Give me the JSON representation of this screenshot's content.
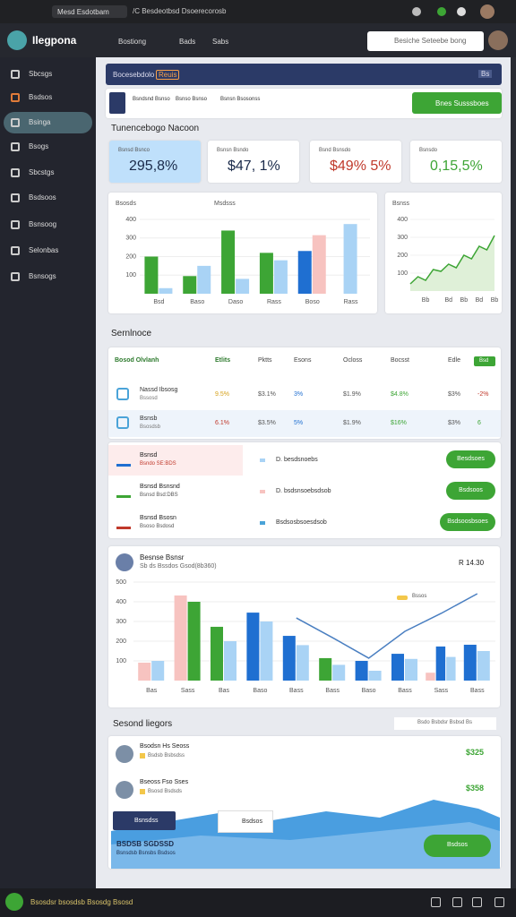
{
  "browser": {
    "tab": "Mesd Esdotbam",
    "url": "/C Besdeotbsd Dsoerecorosb"
  },
  "app": {
    "brand": "Ilegpona",
    "nav": [
      "Bostiong",
      "Bads",
      "Sabs"
    ],
    "search": "Besiche Seteebe bong"
  },
  "sidebar": [
    "Sbcsgs",
    "Bsdsos",
    "Bsinga",
    "Bsogs",
    "Sbcstgs",
    "Bsdsoos",
    "Bsnsoog",
    "Selonbas",
    "Bsnsogs"
  ],
  "banner": {
    "title": "Bocesebdolo",
    "tag": "Reuis",
    "badge": "Bs"
  },
  "toolbar": {
    "items": [
      "Bsndsnd Bsnso",
      "Bsnso Bsnso",
      "Bsnsn Bsosonss"
    ],
    "button": "Bnes Susssboes"
  },
  "kpi_section": "Tunencebogo Nacoon",
  "kpis": [
    {
      "label": "Bsnsd Bsnco",
      "value": "295,8%"
    },
    {
      "label": "Bsnsn Bsndo",
      "value": "$47, 1%"
    },
    {
      "label": "Bsnd Bsnsdo",
      "value": "$49% 5%"
    },
    {
      "label": "Bsnsdo",
      "value": "0,15,5%"
    }
  ],
  "chart1": {
    "title": "Bsosds",
    "subtitle": "Msdsss",
    "categories": [
      "Bsd",
      "Baso",
      "Daso",
      "Rass",
      "Boso",
      "Rass"
    ],
    "series": [
      {
        "color": "#3da535",
        "values": [
          200,
          95,
          340,
          220,
          null,
          null
        ]
      },
      {
        "color": "#a9d3f5",
        "values": [
          30,
          150,
          80,
          180,
          null,
          375
        ]
      },
      {
        "color": "#1f6fd1",
        "values": [
          null,
          null,
          null,
          null,
          230,
          null
        ]
      },
      {
        "color": "#f7c3c0",
        "values": [
          null,
          null,
          null,
          null,
          315,
          null
        ]
      }
    ],
    "ylim": [
      0,
      400
    ],
    "yticks": [
      100,
      200,
      300,
      400
    ]
  },
  "chart2": {
    "title": "Bsnss",
    "categories": [
      null,
      null,
      "Bb",
      null,
      null,
      "Bd",
      null,
      "Bb",
      null,
      "Bd",
      null,
      "Bb"
    ],
    "values": [
      40,
      80,
      60,
      120,
      110,
      150,
      130,
      200,
      180,
      250,
      230,
      310
    ],
    "ylim": [
      0,
      400
    ],
    "yticks": [
      100,
      200,
      300,
      400
    ],
    "color": "#3da535"
  },
  "table_section": "Sernlnoce",
  "table": {
    "header": [
      "Bosod Olvlanh",
      "Etlits",
      "Pktts",
      "Esons",
      "Ocloss",
      "Bocsst",
      "Edle"
    ],
    "button": "Bsd",
    "rows": [
      {
        "name": "Nassd Ibsosg",
        "sub": "Bssosd",
        "cells": [
          "9.5%",
          "$3.1%",
          "3%",
          "$1.9%",
          "$4.8%",
          "$3%",
          "-2%"
        ]
      },
      {
        "name": "Bsnsb",
        "sub": "Bsosdsb",
        "cells": [
          "6.1%",
          "$3.5%",
          "5%",
          "$1.9%",
          "$16%",
          "$3%",
          "6"
        ]
      }
    ]
  },
  "actions": [
    {
      "title": "Bsnsd",
      "sub": "Bsndo SE:BDS",
      "detail": "D. besdsnoebs",
      "button": "Besdsoes"
    },
    {
      "title": "Bsnsd Bsnsnd",
      "sub": "Bsnsd Bsd:DBS",
      "detail": "D. bsdsnsoebsdsob",
      "button": "Bsdsoos"
    },
    {
      "title": "Bsnsd Bsosn",
      "sub": "Bsoso Bsdosd",
      "detail": "Bsdsosbsoesdsob",
      "button": "Bsdsoosbsoes"
    }
  ],
  "chart3": {
    "title": "Besnse Bsnsr",
    "subtitle": "Sb ds Bssdos Gsod(8b360)",
    "meta": "R 14.30",
    "annotation": "Bssos",
    "categories": [
      "Bas",
      "Sass",
      "Bas",
      "Baso",
      "Bass",
      "Bass",
      "Baso",
      "Bass",
      "Sass",
      "Bass"
    ],
    "series": [
      {
        "color": "#f7c3c0",
        "values": [
          91,
          432,
          null,
          null,
          null,
          null,
          null,
          null,
          40,
          null
        ]
      },
      {
        "color": "#3da535",
        "values": [
          null,
          400,
          273,
          null,
          null,
          114,
          null,
          null,
          null,
          null
        ]
      },
      {
        "color": "#1f6fd1",
        "values": [
          null,
          null,
          null,
          345,
          227,
          null,
          100,
          136,
          173,
          182
        ]
      },
      {
        "color": "#a9d3f5",
        "values": [
          100,
          null,
          200,
          300,
          180,
          80,
          50,
          110,
          120,
          150
        ]
      }
    ],
    "line": {
      "color": "#4a7fc1",
      "values": [
        null,
        null,
        null,
        null,
        318,
        218,
        114,
        250,
        341,
        441
      ]
    },
    "ylim": [
      0,
      500
    ],
    "yticks": [
      100,
      200,
      300,
      400,
      500
    ]
  },
  "list_section": "Sesond liegors",
  "list_filter": "Bsdo Bsbdsr Bsbsd Bs",
  "list": [
    {
      "name": "Bsodsn Hs Seoss",
      "sub": "Bsdsb Bsbsdss",
      "value": "$325"
    },
    {
      "name": "Bseoss Fso Sses",
      "sub": "Bsosd Bsdsds",
      "value": "$358"
    }
  ],
  "promo": {
    "tab": "Bsnsdss",
    "search": "Bsdsos",
    "title": "BSDSB SGDSSD",
    "sub": "Bsnsdsb Bsnsbs Bsdsos",
    "button": "Bsdsos"
  },
  "footer": "Bsosdsr bsosdsb Bsosdg Bsosd"
}
